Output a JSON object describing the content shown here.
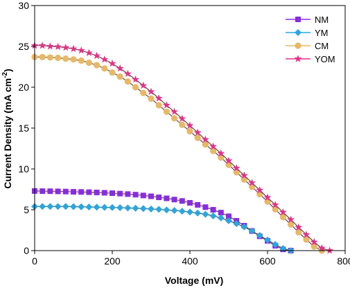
{
  "chart_data": {
    "type": "line",
    "xlabel": "Voltage (mV)",
    "ylabel_main": "Current Density (mA cm",
    "ylabel_sup": "-2",
    "ylabel_close": ")",
    "xlim": [
      0,
      800
    ],
    "ylim": [
      0,
      30
    ],
    "xticks": [
      0,
      200,
      400,
      600,
      800
    ],
    "yticks": [
      0,
      5,
      10,
      15,
      20,
      25,
      30
    ],
    "legend_position": "top-right",
    "grid": false,
    "series": [
      {
        "name": "NM",
        "color": "#8a2be2",
        "marker": "square",
        "x": [
          0,
          20,
          40,
          60,
          80,
          100,
          120,
          140,
          160,
          180,
          200,
          220,
          240,
          260,
          280,
          300,
          320,
          340,
          360,
          380,
          400,
          420,
          440,
          460,
          480,
          500,
          520,
          540,
          560,
          580,
          600,
          620,
          640,
          660
        ],
        "y": [
          7.3,
          7.28,
          7.27,
          7.25,
          7.23,
          7.2,
          7.18,
          7.15,
          7.12,
          7.08,
          7.03,
          6.98,
          6.92,
          6.85,
          6.75,
          6.65,
          6.52,
          6.4,
          6.25,
          6.08,
          5.85,
          5.6,
          5.32,
          5.0,
          4.65,
          4.2,
          3.65,
          3.05,
          2.4,
          1.75,
          1.2,
          0.6,
          0.15,
          0
        ]
      },
      {
        "name": "YM",
        "color": "#2aa6e0",
        "marker": "diamond",
        "x": [
          0,
          20,
          40,
          60,
          80,
          100,
          120,
          140,
          160,
          180,
          200,
          220,
          240,
          260,
          280,
          300,
          320,
          340,
          360,
          380,
          400,
          420,
          440,
          460,
          480,
          500,
          520,
          540,
          560,
          580,
          600,
          620,
          640,
          660
        ],
        "y": [
          5.4,
          5.4,
          5.4,
          5.4,
          5.4,
          5.38,
          5.36,
          5.34,
          5.32,
          5.3,
          5.28,
          5.25,
          5.22,
          5.19,
          5.15,
          5.1,
          5.05,
          4.98,
          4.92,
          4.82,
          4.72,
          4.6,
          4.45,
          4.25,
          4.0,
          3.65,
          3.3,
          2.9,
          2.4,
          1.85,
          1.3,
          0.75,
          0.25,
          0
        ]
      },
      {
        "name": "CM",
        "color": "#e8b865",
        "marker": "circle",
        "x": [
          0,
          20,
          40,
          60,
          80,
          100,
          120,
          140,
          160,
          180,
          200,
          220,
          240,
          260,
          280,
          300,
          320,
          340,
          360,
          380,
          400,
          420,
          440,
          460,
          480,
          500,
          520,
          540,
          560,
          580,
          600,
          620,
          640,
          660,
          680,
          700,
          720,
          740
        ],
        "y": [
          23.7,
          23.7,
          23.65,
          23.6,
          23.5,
          23.4,
          23.25,
          23.0,
          22.7,
          22.3,
          21.8,
          21.3,
          20.7,
          20.0,
          19.3,
          18.6,
          17.8,
          17.0,
          16.2,
          15.4,
          14.6,
          13.8,
          13.0,
          12.2,
          11.4,
          10.5,
          9.6,
          8.7,
          7.8,
          6.9,
          6.0,
          5.05,
          4.1,
          3.2,
          2.25,
          1.35,
          0.5,
          0
        ]
      },
      {
        "name": "YOM",
        "color": "#e6308a",
        "marker": "star",
        "x": [
          0,
          20,
          40,
          60,
          80,
          100,
          120,
          140,
          160,
          180,
          200,
          220,
          240,
          260,
          280,
          300,
          320,
          340,
          360,
          380,
          400,
          420,
          440,
          460,
          480,
          500,
          520,
          540,
          560,
          580,
          600,
          620,
          640,
          660,
          680,
          700,
          720,
          740,
          760
        ],
        "y": [
          25.1,
          25.1,
          25.0,
          24.95,
          24.85,
          24.7,
          24.5,
          24.2,
          23.85,
          23.4,
          22.9,
          22.3,
          21.65,
          20.95,
          20.2,
          19.45,
          18.65,
          17.8,
          17.0,
          16.15,
          15.3,
          14.45,
          13.6,
          12.75,
          11.9,
          11.0,
          10.1,
          9.2,
          8.3,
          7.4,
          6.5,
          5.6,
          4.7,
          3.8,
          2.85,
          1.95,
          1.05,
          0.3,
          0
        ]
      }
    ]
  }
}
